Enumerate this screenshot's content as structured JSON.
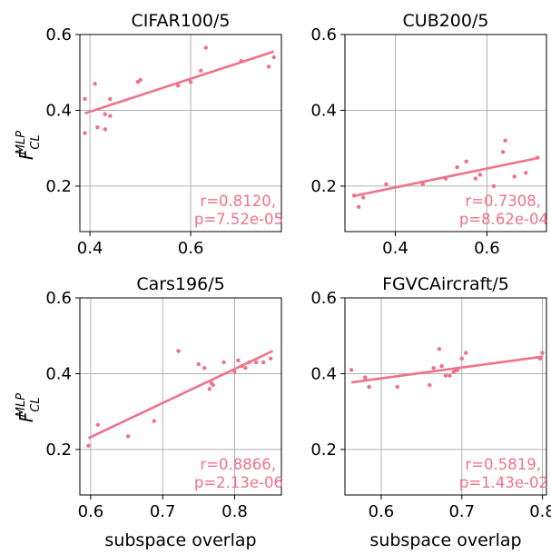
{
  "figure": {
    "ylabel_main": "F",
    "ylabel_sup": "MLP",
    "ylabel_sub": "CL",
    "xlabel": "subspace overlap",
    "colors": {
      "points": "#f07289",
      "fit": "#f07289",
      "annotation": "#f07289",
      "grid": "#b0b0b0"
    }
  },
  "chart_data": [
    {
      "type": "scatter",
      "title": "CIFAR100/5",
      "xlim": [
        0.38,
        0.78
      ],
      "ylim": [
        0.08,
        0.6
      ],
      "xticks": [
        0.4,
        0.6
      ],
      "xtick_labels": [
        "0.4",
        "0.6"
      ],
      "yticks": [
        0.2,
        0.4,
        0.6
      ],
      "ytick_labels": [
        "0.2",
        "0.4",
        "0.6"
      ],
      "grid": true,
      "points": [
        [
          0.39,
          0.43
        ],
        [
          0.39,
          0.34
        ],
        [
          0.41,
          0.47
        ],
        [
          0.415,
          0.355
        ],
        [
          0.43,
          0.39
        ],
        [
          0.43,
          0.35
        ],
        [
          0.44,
          0.43
        ],
        [
          0.44,
          0.385
        ],
        [
          0.495,
          0.475
        ],
        [
          0.5,
          0.48
        ],
        [
          0.575,
          0.465
        ],
        [
          0.6,
          0.475
        ],
        [
          0.62,
          0.505
        ],
        [
          0.63,
          0.565
        ],
        [
          0.7,
          0.53
        ],
        [
          0.755,
          0.515
        ],
        [
          0.765,
          0.54
        ]
      ],
      "fit": [
        [
          0.39,
          0.392
        ],
        [
          0.765,
          0.555
        ]
      ],
      "annotation": [
        "r=0.8120,",
        "p=7.52e-05"
      ]
    },
    {
      "type": "scatter",
      "title": "CUB200/5",
      "xlim": [
        0.29,
        0.73
      ],
      "ylim": [
        0.08,
        0.6
      ],
      "xticks": [
        0.4,
        0.6
      ],
      "xtick_labels": [
        "0.4",
        "0.6"
      ],
      "yticks": [
        0.2,
        0.4,
        0.6
      ],
      "ytick_labels": [
        "0.2",
        "0.4",
        "0.6"
      ],
      "grid": true,
      "points": [
        [
          0.31,
          0.175
        ],
        [
          0.32,
          0.145
        ],
        [
          0.33,
          0.17
        ],
        [
          0.38,
          0.205
        ],
        [
          0.46,
          0.205
        ],
        [
          0.51,
          0.22
        ],
        [
          0.535,
          0.25
        ],
        [
          0.555,
          0.265
        ],
        [
          0.575,
          0.22
        ],
        [
          0.585,
          0.23
        ],
        [
          0.615,
          0.2
        ],
        [
          0.635,
          0.29
        ],
        [
          0.64,
          0.32
        ],
        [
          0.66,
          0.225
        ],
        [
          0.685,
          0.235
        ],
        [
          0.71,
          0.275
        ]
      ],
      "fit": [
        [
          0.31,
          0.174
        ],
        [
          0.715,
          0.275
        ]
      ],
      "annotation": [
        "r=0.7308,",
        "p=8.62e-04"
      ]
    },
    {
      "type": "scatter",
      "title": "Cars196/5",
      "xlim": [
        0.585,
        0.865
      ],
      "ylim": [
        0.08,
        0.6
      ],
      "xticks": [
        0.6,
        0.7,
        0.8
      ],
      "xtick_labels": [
        "0.6",
        "0.7",
        "0.8"
      ],
      "yticks": [
        0.2,
        0.4,
        0.6
      ],
      "ytick_labels": [
        "0.2",
        "0.4",
        "0.6"
      ],
      "grid": true,
      "points": [
        [
          0.597,
          0.21
        ],
        [
          0.61,
          0.265
        ],
        [
          0.652,
          0.235
        ],
        [
          0.688,
          0.275
        ],
        [
          0.722,
          0.46
        ],
        [
          0.75,
          0.425
        ],
        [
          0.758,
          0.415
        ],
        [
          0.765,
          0.36
        ],
        [
          0.768,
          0.375
        ],
        [
          0.77,
          0.37
        ],
        [
          0.785,
          0.43
        ],
        [
          0.8,
          0.405
        ],
        [
          0.805,
          0.435
        ],
        [
          0.81,
          0.42
        ],
        [
          0.815,
          0.415
        ],
        [
          0.82,
          0.43
        ],
        [
          0.83,
          0.43
        ],
        [
          0.84,
          0.43
        ],
        [
          0.85,
          0.44
        ]
      ],
      "fit": [
        [
          0.597,
          0.23
        ],
        [
          0.853,
          0.46
        ]
      ],
      "annotation": [
        "r=0.8866,",
        "p=2.13e-06"
      ]
    },
    {
      "type": "scatter",
      "title": "FGVCAircraft/5",
      "xlim": [
        0.555,
        0.805
      ],
      "ylim": [
        0.08,
        0.6
      ],
      "xticks": [
        0.6,
        0.7,
        0.8
      ],
      "xtick_labels": [
        "0.6",
        "0.7",
        "0.8"
      ],
      "yticks": [
        0.2,
        0.4,
        0.6
      ],
      "ytick_labels": [
        "0.2",
        "0.4",
        "0.6"
      ],
      "grid": true,
      "points": [
        [
          0.563,
          0.41
        ],
        [
          0.58,
          0.39
        ],
        [
          0.585,
          0.365
        ],
        [
          0.62,
          0.365
        ],
        [
          0.66,
          0.37
        ],
        [
          0.665,
          0.415
        ],
        [
          0.672,
          0.465
        ],
        [
          0.675,
          0.42
        ],
        [
          0.68,
          0.395
        ],
        [
          0.685,
          0.395
        ],
        [
          0.69,
          0.405
        ],
        [
          0.693,
          0.41
        ],
        [
          0.695,
          0.41
        ],
        [
          0.7,
          0.44
        ],
        [
          0.705,
          0.455
        ],
        [
          0.797,
          0.44
        ],
        [
          0.8,
          0.455
        ]
      ],
      "fit": [
        [
          0.563,
          0.377
        ],
        [
          0.8,
          0.445
        ]
      ],
      "annotation": [
        "r=0.5819,",
        "p=1.43e-02"
      ]
    }
  ]
}
